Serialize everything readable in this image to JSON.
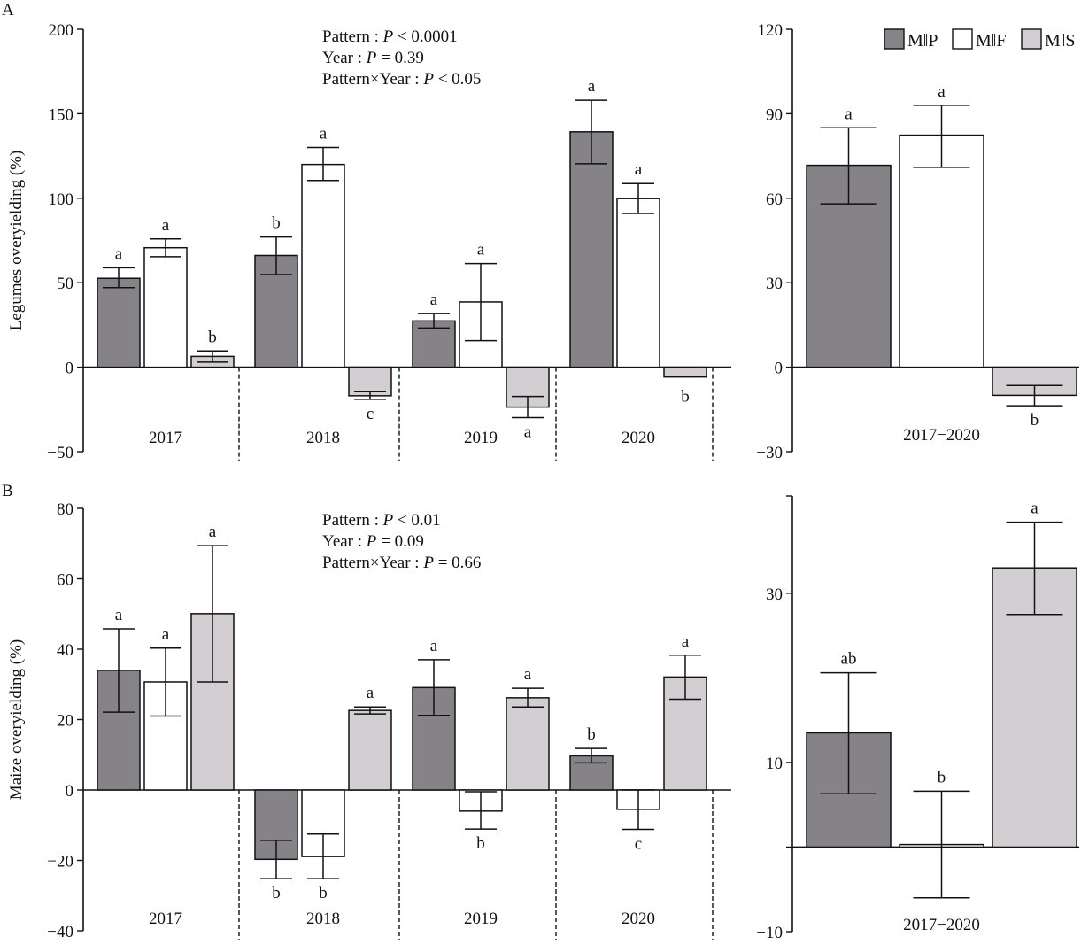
{
  "figure": {
    "legend": [
      {
        "label": "M‖P",
        "color": "#858387"
      },
      {
        "label": "M‖F",
        "color": "#ffffff"
      },
      {
        "label": "M‖S",
        "color": "#d2ced1"
      }
    ]
  },
  "chart_data": [
    {
      "type": "bar",
      "panel": "A",
      "ylabel": "Legumes overyielding (%)",
      "ylim": [
        -50,
        200
      ],
      "yticks": [
        -50,
        0,
        50,
        100,
        150,
        200
      ],
      "categories": [
        "2017",
        "2018",
        "2019",
        "2020"
      ],
      "stats": [
        "Pattern : P < 0.0001",
        "Year : P = 0.39",
        "Pattern×Year : P < 0.05"
      ],
      "series": [
        {
          "name": "M‖P",
          "values": [
            52.6,
            66.1,
            27.4,
            139.3
          ],
          "err_high": [
            58.8,
            77.0,
            31.8,
            158.0
          ],
          "err_low": [
            47.1,
            54.8,
            23.2,
            120.4
          ],
          "letters": [
            "a",
            "b",
            "a",
            "a"
          ]
        },
        {
          "name": "M‖F",
          "values": [
            70.7,
            120.0,
            38.6,
            99.8
          ],
          "err_high": [
            75.9,
            130.0,
            61.3,
            108.7
          ],
          "err_low": [
            65.4,
            110.5,
            15.7,
            91.0
          ],
          "letters": [
            "a",
            "a",
            "a",
            "a"
          ]
        },
        {
          "name": "M‖S",
          "values": [
            6.4,
            -16.9,
            -23.6,
            -5.8
          ],
          "err_high": [
            9.6,
            -14.5,
            -17.3,
            null
          ],
          "err_low": [
            3.0,
            -19.0,
            -29.8,
            null
          ],
          "letters": [
            "b",
            "c",
            "a",
            "b"
          ]
        }
      ]
    },
    {
      "type": "bar",
      "panel": "A-mean",
      "ylim": [
        -30,
        120
      ],
      "yticks": [
        -30,
        0,
        30,
        60,
        90,
        120
      ],
      "categories": [
        "2017−2020"
      ],
      "series": [
        {
          "name": "M‖P",
          "values": [
            71.7
          ],
          "err_high": [
            85.0
          ],
          "err_low": [
            58.0
          ],
          "letters": [
            "a"
          ]
        },
        {
          "name": "M‖F",
          "values": [
            82.4
          ],
          "err_high": [
            93.0
          ],
          "err_low": [
            71.0
          ],
          "letters": [
            "a"
          ]
        },
        {
          "name": "M‖S",
          "values": [
            -10.0
          ],
          "err_high": [
            -6.5
          ],
          "err_low": [
            -13.7
          ],
          "letters": [
            "b"
          ]
        }
      ]
    },
    {
      "type": "bar",
      "panel": "B",
      "ylabel": "Maize overyielding (%)",
      "ylim": [
        -40,
        80
      ],
      "yticks": [
        -40,
        -20,
        0,
        20,
        40,
        60,
        80
      ],
      "categories": [
        "2017",
        "2018",
        "2019",
        "2020"
      ],
      "stats": [
        "Pattern : P < 0.01",
        "Year : P = 0.09",
        "Pattern×Year : P = 0.66"
      ],
      "series": [
        {
          "name": "M‖P",
          "values": [
            34.0,
            -19.7,
            29.1,
            9.7
          ],
          "err_high": [
            45.8,
            -14.3,
            37.0,
            11.8
          ],
          "err_low": [
            22.1,
            -25.2,
            21.2,
            7.7
          ],
          "letters": [
            "a",
            "b",
            "a",
            "b"
          ]
        },
        {
          "name": "M‖F",
          "values": [
            30.7,
            -18.9,
            -6.0,
            -5.5
          ],
          "err_high": [
            40.3,
            -12.5,
            -0.5,
            0.0
          ],
          "err_low": [
            21.0,
            -25.2,
            -11.1,
            -11.2
          ],
          "letters": [
            "a",
            "b",
            "b",
            "c"
          ]
        },
        {
          "name": "M‖S",
          "values": [
            50.1,
            22.6,
            26.2,
            32.1
          ],
          "err_high": [
            69.4,
            23.6,
            28.9,
            38.3
          ],
          "err_low": [
            30.7,
            21.6,
            23.6,
            25.8
          ],
          "letters": [
            "a",
            "a",
            "a",
            "a"
          ]
        }
      ]
    },
    {
      "type": "bar",
      "panel": "B-mean",
      "ylim": [
        -10,
        41.5
      ],
      "yticks": [
        -10,
        0,
        10,
        30
      ],
      "ytick_labels": [
        "−10",
        "",
        "10",
        "30"
      ],
      "categories": [
        "2017−2020"
      ],
      "series": [
        {
          "name": "M‖P",
          "values": [
            13.5
          ],
          "err_high": [
            20.6
          ],
          "err_low": [
            6.3
          ],
          "letters": [
            "ab"
          ]
        },
        {
          "name": "M‖F",
          "values": [
            0.3
          ],
          "err_high": [
            6.6
          ],
          "err_low": [
            -6.0
          ],
          "letters": [
            "b"
          ]
        },
        {
          "name": "M‖S",
          "values": [
            33.0
          ],
          "err_high": [
            38.4
          ],
          "err_low": [
            27.5
          ],
          "letters": [
            "a"
          ]
        }
      ]
    }
  ]
}
